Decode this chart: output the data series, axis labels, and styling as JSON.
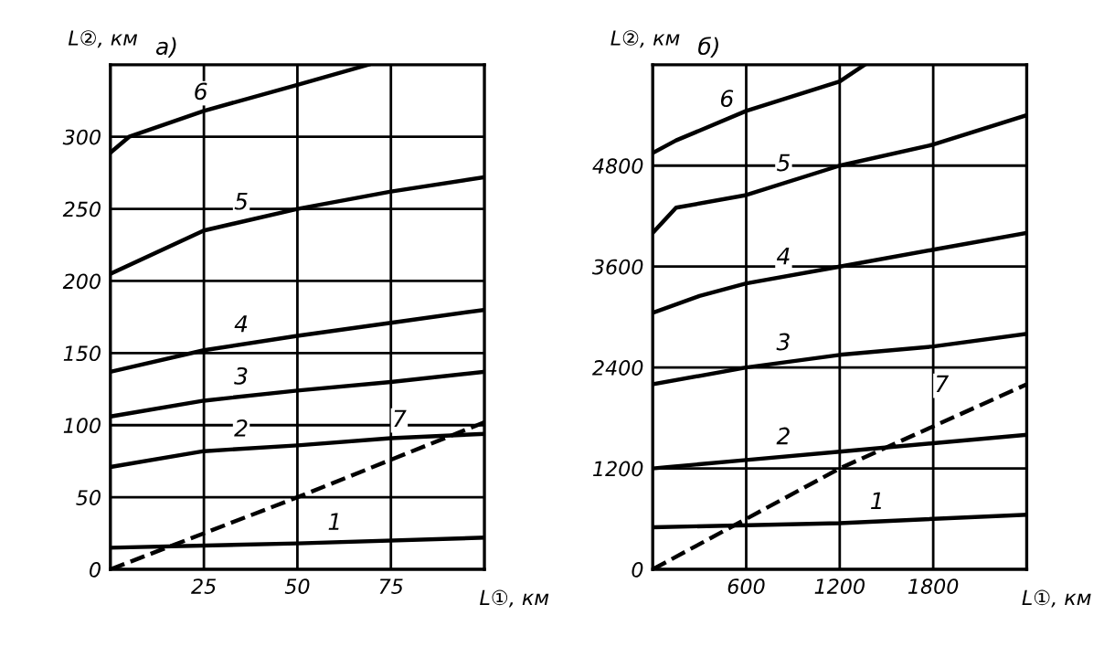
{
  "chart_data": [
    {
      "type": "line",
      "title": "а)",
      "xlabel": "L①, км",
      "ylabel": "L②, км",
      "xlim": [
        0,
        100
      ],
      "ylim": [
        0,
        350
      ],
      "xticks": [
        25,
        50,
        75
      ],
      "yticks": [
        0,
        50,
        100,
        150,
        200,
        250,
        300
      ],
      "grid": true,
      "legend": false,
      "marker": "none",
      "line_style": "solid",
      "series": [
        {
          "name": "1",
          "color": "#000000",
          "x": [
            0,
            50,
            100
          ],
          "values": [
            15,
            18,
            22
          ]
        },
        {
          "name": "2",
          "color": "#000000",
          "x": [
            0,
            25,
            50,
            75,
            100
          ],
          "values": [
            71,
            82,
            86,
            91,
            94
          ]
        },
        {
          "name": "3",
          "color": "#000000",
          "x": [
            0,
            25,
            50,
            75,
            100
          ],
          "values": [
            106,
            117,
            124,
            130,
            137
          ]
        },
        {
          "name": "4",
          "color": "#000000",
          "x": [
            0,
            25,
            50,
            75,
            100
          ],
          "values": [
            137,
            152,
            162,
            171,
            180
          ]
        },
        {
          "name": "5",
          "color": "#000000",
          "x": [
            0,
            25,
            50,
            75,
            100
          ],
          "values": [
            205,
            235,
            250,
            262,
            272
          ]
        },
        {
          "name": "6",
          "color": "#000000",
          "x": [
            0,
            5,
            25,
            50,
            69
          ],
          "values": [
            289,
            300,
            318,
            336,
            350
          ]
        },
        {
          "name": "7",
          "color": "#000000",
          "line_style": "dashed",
          "x": [
            0,
            50,
            100
          ],
          "values": [
            0,
            50,
            102
          ]
        }
      ]
    },
    {
      "type": "line",
      "title": "б)",
      "xlabel": "L①, км",
      "ylabel": "L②, км",
      "xlim": [
        0,
        2400
      ],
      "ylim": [
        0,
        6000
      ],
      "xticks": [
        600,
        1200,
        1800
      ],
      "yticks": [
        0,
        1200,
        2400,
        3600,
        4800
      ],
      "grid": true,
      "legend": false,
      "marker": "none",
      "line_style": "solid",
      "series": [
        {
          "name": "1",
          "color": "#000000",
          "x": [
            0,
            1200,
            2400
          ],
          "values": [
            500,
            550,
            650
          ]
        },
        {
          "name": "2",
          "color": "#000000",
          "x": [
            0,
            600,
            1200,
            1800,
            2400
          ],
          "values": [
            1200,
            1300,
            1400,
            1500,
            1600
          ]
        },
        {
          "name": "3",
          "color": "#000000",
          "x": [
            0,
            600,
            1200,
            1800,
            2400
          ],
          "values": [
            2200,
            2400,
            2550,
            2650,
            2800
          ]
        },
        {
          "name": "4",
          "color": "#000000",
          "x": [
            0,
            300,
            600,
            1200,
            1800,
            2400
          ],
          "values": [
            3050,
            3250,
            3400,
            3600,
            3800,
            4000
          ]
        },
        {
          "name": "5",
          "color": "#000000",
          "x": [
            0,
            150,
            600,
            1200,
            1800,
            2400
          ],
          "values": [
            4000,
            4300,
            4450,
            4800,
            5050,
            5400
          ]
        },
        {
          "name": "6",
          "color": "#000000",
          "x": [
            0,
            150,
            600,
            1200,
            1360
          ],
          "values": [
            4950,
            5100,
            5450,
            5800,
            6000
          ]
        },
        {
          "name": "7",
          "color": "#000000",
          "line_style": "dashed",
          "x": [
            0,
            1200,
            2400
          ],
          "values": [
            0,
            1200,
            2200
          ]
        }
      ]
    }
  ]
}
